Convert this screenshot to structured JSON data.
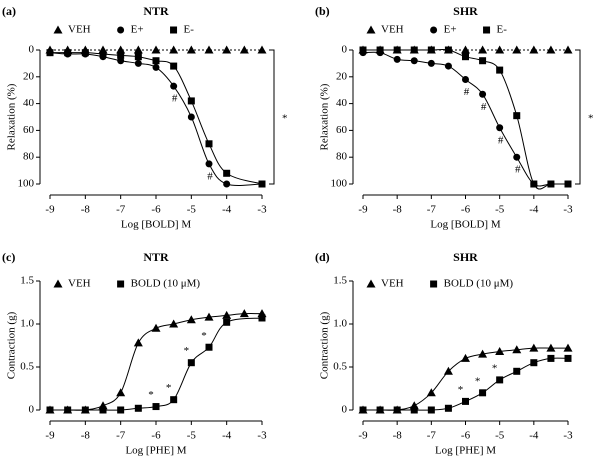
{
  "chart_data": [
    {
      "type": "line",
      "panel_label": "(a)",
      "title": "NTR",
      "xlabel": "Log [BOLD] M",
      "ylabel": "Relaxation (%)",
      "xlim": [
        -9,
        -3
      ],
      "xticks": [
        -9,
        -8,
        -7,
        -6,
        -5,
        -4,
        -3
      ],
      "ylim": [
        0,
        100
      ],
      "yticks": [
        0,
        20,
        40,
        60,
        80,
        100
      ],
      "y_inverted": true,
      "significance": "*",
      "series": [
        {
          "name": "VEH",
          "color": "#000000",
          "marker": "triangle",
          "dashed": true,
          "x": [
            -9,
            -8.5,
            -8,
            -7.5,
            -7,
            -6.5,
            -6,
            -5.5,
            -5,
            -4.5,
            -4,
            -3.5,
            -3
          ],
          "values": [
            0,
            0,
            0,
            0,
            0,
            0,
            0,
            0,
            0,
            0,
            0,
            0,
            0
          ]
        },
        {
          "name": "E+",
          "color": "#000000",
          "marker": "circle",
          "dashed": false,
          "x": [
            -9,
            -8.5,
            -8,
            -7.5,
            -7,
            -6.5,
            -6,
            -5.5,
            -5,
            -4.5,
            -4,
            -3
          ],
          "values": [
            2,
            3,
            3,
            5,
            8,
            10,
            13,
            27,
            50,
            85,
            100,
            100
          ],
          "annotations": [
            null,
            null,
            null,
            null,
            null,
            null,
            null,
            "#",
            null,
            "#",
            null,
            null
          ]
        },
        {
          "name": "E-",
          "color": "#000000",
          "marker": "square",
          "dashed": false,
          "x": [
            -9,
            -8.5,
            -8,
            -7.5,
            -7,
            -6.5,
            -6,
            -5.5,
            -5,
            -4.5,
            -4,
            -3
          ],
          "values": [
            2,
            2,
            2,
            3,
            4,
            5,
            8,
            12,
            38,
            70,
            92,
            100
          ]
        }
      ]
    },
    {
      "type": "line",
      "panel_label": "(b)",
      "title": "SHR",
      "xlabel": "Log [BOLD] M",
      "ylabel": "Relaxation (%)",
      "xlim": [
        -9,
        -3
      ],
      "xticks": [
        -9,
        -8,
        -7,
        -6,
        -5,
        -4,
        -3
      ],
      "ylim": [
        0,
        100
      ],
      "yticks": [
        0,
        20,
        40,
        60,
        80,
        100
      ],
      "y_inverted": true,
      "significance": "*",
      "series": [
        {
          "name": "VEH",
          "color": "#000000",
          "marker": "triangle",
          "dashed": true,
          "x": [
            -9,
            -8.5,
            -8,
            -7.5,
            -7,
            -6.5,
            -6,
            -5.5,
            -5,
            -4.5,
            -4,
            -3.5,
            -3
          ],
          "values": [
            0,
            0,
            0,
            0,
            0,
            0,
            0,
            0,
            0,
            0,
            0,
            0,
            0
          ]
        },
        {
          "name": "E+",
          "color": "#000000",
          "marker": "circle",
          "dashed": false,
          "x": [
            -9,
            -8.5,
            -8,
            -7.5,
            -7,
            -6.5,
            -6,
            -5.5,
            -5,
            -4.5,
            -4,
            -3.5,
            -3
          ],
          "values": [
            2,
            2,
            7,
            8,
            10,
            12,
            22,
            33,
            58,
            80,
            100,
            100,
            100
          ],
          "annotations": [
            null,
            null,
            null,
            null,
            null,
            null,
            "#",
            "#",
            "#",
            "#",
            null,
            null,
            null
          ]
        },
        {
          "name": "E-",
          "color": "#000000",
          "marker": "square",
          "dashed": false,
          "x": [
            -9,
            -8.5,
            -8,
            -7.5,
            -7,
            -6.5,
            -6,
            -5.5,
            -5,
            -4.5,
            -4,
            -3.5,
            -3
          ],
          "values": [
            0,
            0,
            0,
            0,
            0,
            0,
            5,
            8,
            15,
            49,
            100,
            100,
            100
          ]
        }
      ]
    },
    {
      "type": "line",
      "panel_label": "(c)",
      "title": "NTR",
      "xlabel": "Log [PHE] M",
      "ylabel": "Contraction (g)",
      "xlim": [
        -9,
        -3
      ],
      "xticks": [
        -9,
        -8,
        -7,
        -6,
        -5,
        -4,
        -3
      ],
      "ylim": [
        0,
        1.5
      ],
      "yticks": [
        0,
        0.5,
        {
          "value": 1,
          "label": "1.0"
        },
        1.5
      ],
      "y_inverted": false,
      "series": [
        {
          "name": "VEH",
          "color": "#000000",
          "marker": "triangle",
          "dashed": false,
          "x": [
            -9,
            -8.5,
            -8,
            -7.5,
            -7,
            -6.5,
            -6,
            -5.5,
            -5,
            -4.5,
            -4,
            -3.5,
            -3
          ],
          "values": [
            0,
            0,
            0,
            0.05,
            0.2,
            0.78,
            0.95,
            1.0,
            1.05,
            1.08,
            1.1,
            1.12,
            1.12
          ]
        },
        {
          "name": "BOLD (10 μM)",
          "color": "#000000",
          "marker": "square",
          "dashed": false,
          "x": [
            -9,
            -8.5,
            -8,
            -7.5,
            -7,
            -6.5,
            -6,
            -5.5,
            -5,
            -4.5,
            -4,
            -3
          ],
          "values": [
            0,
            0,
            0,
            0,
            0,
            0.02,
            0.04,
            0.12,
            0.55,
            0.73,
            1.02,
            1.07
          ],
          "annotations": [
            null,
            null,
            null,
            null,
            null,
            null,
            "*",
            "*",
            "*",
            "*",
            null,
            null
          ]
        }
      ]
    },
    {
      "type": "line",
      "panel_label": "(d)",
      "title": "SHR",
      "xlabel": "Log [PHE] M",
      "ylabel": "Contraction (g)",
      "xlim": [
        -9,
        -3
      ],
      "xticks": [
        -9,
        -8,
        -7,
        -6,
        -5,
        -4,
        -3
      ],
      "ylim": [
        0,
        1.5
      ],
      "yticks": [
        0,
        0.5,
        {
          "value": 1,
          "label": "1.0"
        },
        1.5
      ],
      "y_inverted": false,
      "series": [
        {
          "name": "VEH",
          "color": "#000000",
          "marker": "triangle",
          "dashed": false,
          "x": [
            -9,
            -8.5,
            -8,
            -7.5,
            -7,
            -6.5,
            -6,
            -5.5,
            -5,
            -4.5,
            -4,
            -3.5,
            -3
          ],
          "values": [
            0,
            0,
            0,
            0.05,
            0.2,
            0.45,
            0.6,
            0.65,
            0.68,
            0.7,
            0.72,
            0.72,
            0.72
          ]
        },
        {
          "name": "BOLD (10 μM)",
          "color": "#000000",
          "marker": "square",
          "dashed": false,
          "x": [
            -9,
            -8.5,
            -8,
            -7.5,
            -7,
            -6.5,
            -6,
            -5.5,
            -5,
            -4.5,
            -4,
            -3.5,
            -3
          ],
          "values": [
            0,
            0,
            0,
            0,
            0,
            0.02,
            0.1,
            0.2,
            0.35,
            0.45,
            0.55,
            0.6,
            0.6
          ],
          "annotations": [
            null,
            null,
            null,
            null,
            null,
            null,
            "*",
            "*",
            "*",
            null,
            null,
            null,
            null
          ]
        }
      ]
    }
  ]
}
